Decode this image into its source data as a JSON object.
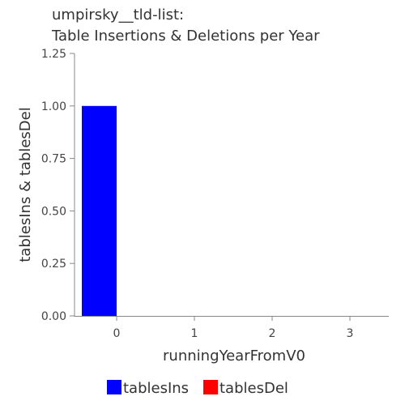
{
  "chart_data": {
    "type": "bar",
    "title": [
      "umpirsky__tld-list:",
      "Table Insertions & Deletions per Year"
    ],
    "xlabel": "runningYearFromV0",
    "ylabel": "tablesIns & tablesDel",
    "categories": [
      "0",
      "1",
      "2",
      "3"
    ],
    "ylim": [
      0,
      1.25
    ],
    "yticks": [
      "0.00",
      "0.25",
      "0.50",
      "0.75",
      "1.00",
      "1.25"
    ],
    "series": [
      {
        "name": "tablesIns",
        "color": "#0000ff",
        "values": [
          1,
          0,
          0,
          0
        ]
      },
      {
        "name": "tablesDel",
        "color": "#ff0000",
        "values": [
          0,
          0,
          0,
          0
        ]
      }
    ],
    "legend": "bottom",
    "grid": false
  }
}
